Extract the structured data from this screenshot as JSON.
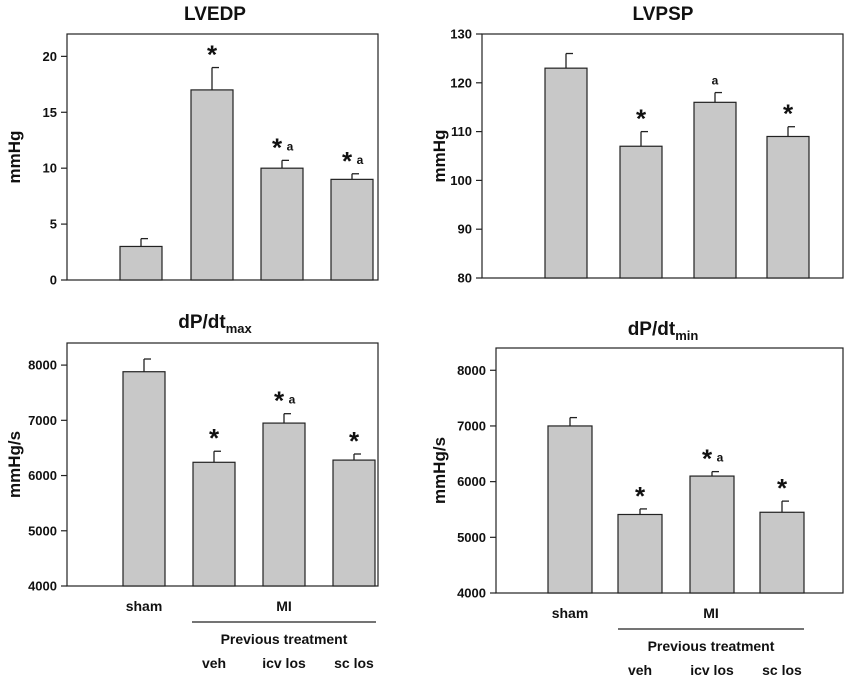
{
  "chart_data": [
    {
      "type": "bar",
      "title": "LVEDP",
      "title_sub": "",
      "ylabel": "mmHg",
      "ylim": [
        0,
        22
      ],
      "yticks": [
        0,
        5,
        10,
        15,
        20
      ],
      "categories": [
        "sham",
        "veh",
        "icv los",
        "sc los"
      ],
      "values": [
        3.0,
        17.0,
        10.0,
        9.0
      ],
      "errors": [
        0.7,
        2.0,
        0.7,
        0.5
      ],
      "annotations": [
        {
          "star": "",
          "letter": ""
        },
        {
          "star": "*",
          "letter": ""
        },
        {
          "star": "*",
          "letter": "a"
        },
        {
          "star": "*",
          "letter": "a"
        }
      ],
      "show_category_labels": false
    },
    {
      "type": "bar",
      "title": "LVPSP",
      "title_sub": "",
      "ylabel": "mmHg",
      "ylim": [
        80,
        130
      ],
      "yticks": [
        80,
        90,
        100,
        110,
        120,
        130
      ],
      "categories": [
        "sham",
        "veh",
        "icv los",
        "sc los"
      ],
      "values": [
        123,
        107,
        116,
        109
      ],
      "errors": [
        3,
        3,
        2,
        2
      ],
      "annotations": [
        {
          "star": "",
          "letter": ""
        },
        {
          "star": "*",
          "letter": ""
        },
        {
          "star": "",
          "letter": "a"
        },
        {
          "star": "*",
          "letter": ""
        }
      ],
      "show_category_labels": false
    },
    {
      "type": "bar",
      "title": "dP/dt",
      "title_sub": "max",
      "ylabel": "mmHg/s",
      "ylim": [
        4000,
        8400
      ],
      "yticks": [
        4000,
        5000,
        6000,
        7000,
        8000
      ],
      "categories": [
        "sham",
        "veh",
        "icv los",
        "sc los"
      ],
      "values": [
        7880,
        6240,
        6950,
        6280
      ],
      "errors": [
        230,
        200,
        170,
        110
      ],
      "annotations": [
        {
          "star": "",
          "letter": ""
        },
        {
          "star": "*",
          "letter": ""
        },
        {
          "star": "*",
          "letter": "a"
        },
        {
          "star": "*",
          "letter": ""
        }
      ],
      "show_category_labels": true
    },
    {
      "type": "bar",
      "title": "dP/dt",
      "title_sub": "min",
      "ylabel": "mmHg/s",
      "ylim": [
        4000,
        8400
      ],
      "yticks": [
        4000,
        5000,
        6000,
        7000,
        8000
      ],
      "categories": [
        "sham",
        "veh",
        "icv los",
        "sc los"
      ],
      "values": [
        7000,
        5410,
        6100,
        5450
      ],
      "errors": [
        150,
        100,
        80,
        200
      ],
      "annotations": [
        {
          "star": "",
          "letter": ""
        },
        {
          "star": "*",
          "letter": ""
        },
        {
          "star": "*",
          "letter": "a"
        },
        {
          "star": "*",
          "letter": ""
        }
      ],
      "show_category_labels": true
    }
  ],
  "group_labels": {
    "mi": "MI",
    "previous_treatment": "Previous treatment"
  },
  "colors": {
    "bar_fill": "#c8c8c8",
    "bar_stroke": "#222222",
    "axis": "#222222"
  }
}
